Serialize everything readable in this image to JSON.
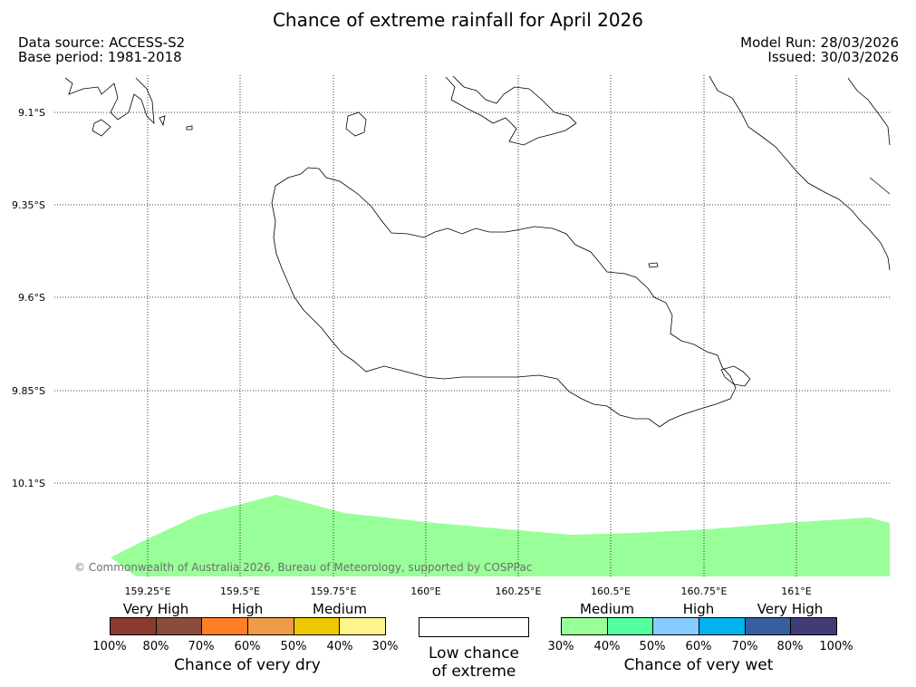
{
  "header": {
    "title": "Chance of extreme rainfall for April 2026",
    "data_source": "Data source: ACCESS-S2",
    "base_period": "Base period: 1981-2018",
    "model_run": "Model Run: 28/03/2026",
    "issued": "Issued: 30/03/2026"
  },
  "map": {
    "lat_labels": [
      "9.1°S",
      "9.35°S",
      "9.6°S",
      "9.85°S",
      "10.1°S"
    ],
    "lon_labels": [
      "159.25°E",
      "159.5°E",
      "159.75°E",
      "160°E",
      "160.25°E",
      "160.5°E",
      "160.75°E",
      "161°E"
    ],
    "copyright": "© Commonwealth of Australia 2026, Bureau of Meteorology, supported by COSPPac",
    "overlay_category": "Chance of very wet, 30%–40% (Medium)",
    "overlay_color": "#99ff99"
  },
  "legend": {
    "dry": {
      "categories": [
        "Very High",
        "High",
        "Medium"
      ],
      "ticks": [
        "100%",
        "80%",
        "70%",
        "60%",
        "50%",
        "40%",
        "30%"
      ],
      "colors": [
        "#8b3a30",
        "#8b4c3c",
        "#ff7f27",
        "#ef9b48",
        "#f0c800",
        "#fff58c"
      ],
      "label": "Chance of very dry"
    },
    "low": {
      "line1": "Low chance",
      "line2": "of extreme",
      "color": "#ffffff"
    },
    "wet": {
      "categories": [
        "Medium",
        "High",
        "Very High"
      ],
      "ticks": [
        "30%",
        "40%",
        "50%",
        "60%",
        "70%",
        "80%",
        "100%"
      ],
      "colors": [
        "#99ff99",
        "#55ff9f",
        "#87cbff",
        "#00b2ee",
        "#355f9f",
        "#413b77"
      ],
      "label": "Chance of very wet"
    }
  }
}
